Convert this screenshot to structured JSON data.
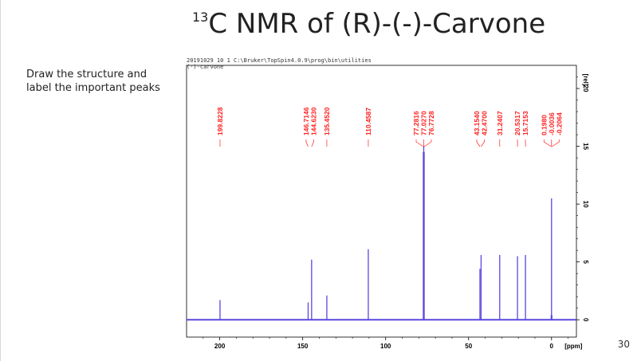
{
  "slide": {
    "title_sup": "13",
    "title_main": "C NMR of (R)-(-)-Carvone",
    "side_note": "Draw the structure and label the important peaks",
    "slide_number": "30"
  },
  "spectrum_header": {
    "line1": "20191029  10  1  C:\\Bruker\\TopSpin4.0.9\\prog\\bin\\utilities",
    "line2": "(-)-carvone"
  },
  "colors": {
    "spectrum": "#5a46e0",
    "peak_labels": "#ff2020",
    "axis": "#000000"
  },
  "chart_data": {
    "type": "line",
    "xlabel": "[ppm]",
    "ylabel": "[rel]",
    "xlim": [
      220,
      -15
    ],
    "ylim": [
      -1.5,
      22
    ],
    "x_ticks": [
      200,
      150,
      100,
      50,
      0
    ],
    "y_ticks": [
      0,
      5,
      10,
      15,
      20
    ],
    "x_axis_reversed": true,
    "peaks": [
      {
        "ppm": 199.8228,
        "height": 1.7
      },
      {
        "ppm": 146.7146,
        "height": 1.5
      },
      {
        "ppm": 144.623,
        "height": 5.2
      },
      {
        "ppm": 135.452,
        "height": 2.1
      },
      {
        "ppm": 110.4587,
        "height": 6.1
      },
      {
        "ppm": 77.2816,
        "height": 14.5
      },
      {
        "ppm": 77.027,
        "height": 15.0
      },
      {
        "ppm": 76.7728,
        "height": 14.5
      },
      {
        "ppm": 43.154,
        "height": 4.4
      },
      {
        "ppm": 42.47,
        "height": 5.6
      },
      {
        "ppm": 31.2407,
        "height": 5.6
      },
      {
        "ppm": 20.5317,
        "height": 5.5
      },
      {
        "ppm": 15.7153,
        "height": 5.6
      },
      {
        "ppm": 0.198,
        "height": 0.4
      },
      {
        "ppm": -0.0036,
        "height": 10.5
      },
      {
        "ppm": -0.2064,
        "height": 0.4
      }
    ],
    "peak_labels": [
      {
        "text": "199.8228",
        "ppm": 199.8228
      },
      {
        "text": "146.7146",
        "ppm": 146.7146
      },
      {
        "text": "144.6230",
        "ppm": 144.623
      },
      {
        "text": "135.4520",
        "ppm": 135.452
      },
      {
        "text": "110.4587",
        "ppm": 110.4587
      },
      {
        "text": "77.2816",
        "ppm": 77.2816
      },
      {
        "text": "77.0270",
        "ppm": 77.027
      },
      {
        "text": "76.7728",
        "ppm": 76.7728
      },
      {
        "text": "43.1540",
        "ppm": 43.154
      },
      {
        "text": "42.4700",
        "ppm": 42.47
      },
      {
        "text": "31.2407",
        "ppm": 31.2407
      },
      {
        "text": "20.5317",
        "ppm": 20.5317
      },
      {
        "text": "15.7153",
        "ppm": 15.7153
      },
      {
        "text": "0.1980",
        "ppm": 0.198
      },
      {
        "text": "-0.0036",
        "ppm": -0.0036
      },
      {
        "text": "-0.2064",
        "ppm": -0.2064
      }
    ]
  }
}
